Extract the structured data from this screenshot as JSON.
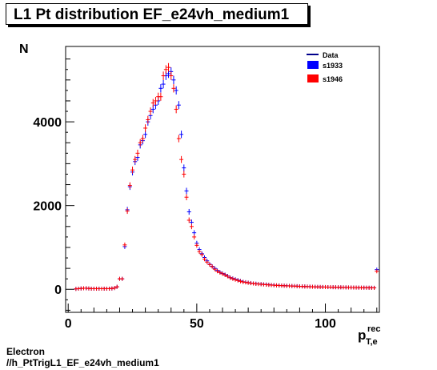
{
  "title": "L1 Pt distribution EF_e24vh_medium1",
  "footer": {
    "line1": "Electron",
    "line2": "//h_PtTrigL1_EF_e24vh_medium1"
  },
  "chart_data": {
    "type": "scatter",
    "title": "L1 Pt distribution EF_e24vh_medium1",
    "ylabel": "N",
    "xlabel_main": "p",
    "xlabel_sup": "rec",
    "xlabel_sub": "T,e",
    "xlim": [
      -1,
      121
    ],
    "ylim": [
      -550,
      5800
    ],
    "xticks": [
      0,
      50,
      100
    ],
    "yticks": [
      0,
      2000,
      4000
    ],
    "legend": {
      "placement": "top-right",
      "entries": [
        {
          "name": "Data",
          "color": "#00008b",
          "style": "line"
        },
        {
          "name": "s1933",
          "color": "#0000ff",
          "style": "box"
        },
        {
          "name": "s1946",
          "color": "#ff0000",
          "style": "box"
        }
      ]
    },
    "x": [
      3,
      4,
      5,
      6,
      7,
      8,
      9,
      10,
      11,
      12,
      13,
      14,
      15,
      16,
      17,
      18,
      19,
      20,
      21,
      22,
      23,
      24,
      25,
      26,
      27,
      28,
      29,
      30,
      31,
      32,
      33,
      34,
      35,
      36,
      37,
      38,
      39,
      40,
      41,
      42,
      43,
      44,
      45,
      46,
      47,
      48,
      49,
      50,
      51,
      52,
      53,
      54,
      55,
      56,
      57,
      58,
      59,
      60,
      61,
      62,
      63,
      64,
      65,
      66,
      67,
      68,
      69,
      70,
      71,
      72,
      73,
      74,
      75,
      76,
      77,
      78,
      79,
      80,
      81,
      82,
      83,
      84,
      85,
      86,
      87,
      88,
      89,
      90,
      91,
      92,
      93,
      94,
      95,
      96,
      97,
      98,
      99,
      100,
      101,
      102,
      103,
      104,
      105,
      106,
      107,
      108,
      109,
      110,
      111,
      112,
      113,
      114,
      115,
      116,
      117,
      118,
      119,
      120
    ],
    "series": [
      {
        "name": "s1933",
        "color": "#0000ff",
        "values": [
          10,
          15,
          20,
          25,
          25,
          20,
          15,
          15,
          15,
          15,
          15,
          15,
          15,
          15,
          20,
          30,
          60,
          250,
          250,
          1020,
          1900,
          2450,
          2800,
          3050,
          3150,
          3450,
          3550,
          3700,
          4000,
          4150,
          4300,
          4400,
          4500,
          4800,
          4900,
          5100,
          5150,
          5200,
          5000,
          4750,
          4400,
          3700,
          2900,
          2350,
          1850,
          1600,
          1350,
          1100,
          950,
          850,
          760,
          680,
          600,
          550,
          500,
          450,
          410,
          380,
          350,
          320,
          280,
          260,
          240,
          220,
          200,
          180,
          170,
          160,
          150,
          140,
          135,
          130,
          125,
          120,
          115,
          110,
          105,
          100,
          95,
          92,
          90,
          88,
          85,
          82,
          80,
          78,
          75,
          72,
          70,
          68,
          66,
          64,
          62,
          60,
          58,
          56,
          55,
          54,
          53,
          52,
          51,
          50,
          49,
          48,
          47,
          46,
          45,
          44,
          43,
          42,
          41,
          40,
          40,
          39,
          38,
          37,
          36,
          470
        ]
      },
      {
        "name": "s1946",
        "color": "#ff0000",
        "values": [
          10,
          15,
          20,
          25,
          25,
          20,
          15,
          15,
          15,
          15,
          15,
          15,
          15,
          15,
          20,
          30,
          60,
          250,
          250,
          1060,
          1870,
          2480,
          2850,
          3100,
          3250,
          3500,
          3600,
          3850,
          4050,
          4250,
          4450,
          4500,
          4600,
          4600,
          5100,
          5250,
          5300,
          5100,
          4800,
          4300,
          3600,
          3100,
          2750,
          2200,
          1650,
          1500,
          1250,
          1050,
          900,
          830,
          720,
          650,
          590,
          540,
          480,
          430,
          400,
          370,
          340,
          310,
          275,
          250,
          230,
          210,
          190,
          175,
          165,
          155,
          145,
          138,
          130,
          125,
          120,
          115,
          110,
          105,
          100,
          97,
          94,
          90,
          88,
          85,
          82,
          80,
          78,
          76,
          73,
          70,
          68,
          66,
          64,
          62,
          60,
          58,
          56,
          55,
          54,
          53,
          52,
          51,
          50,
          49,
          48,
          47,
          46,
          45,
          44,
          43,
          42,
          41,
          40,
          39,
          39,
          38,
          37,
          36,
          35,
          430
        ]
      }
    ]
  }
}
